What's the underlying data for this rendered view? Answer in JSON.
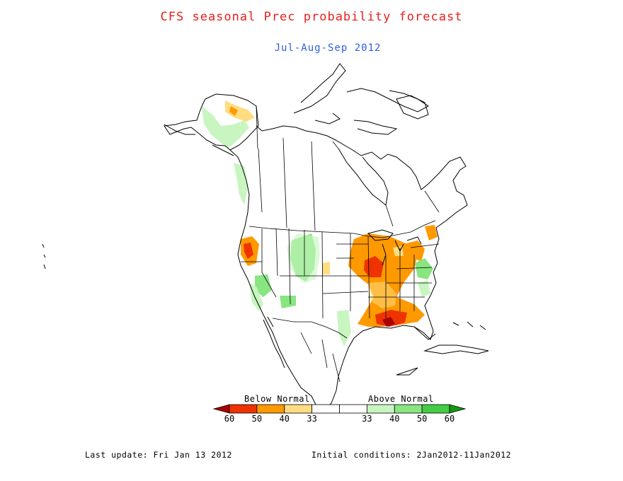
{
  "title": "CFS seasonal Prec probability forecast",
  "subtitle": "Jul-Aug-Sep 2012",
  "legend": {
    "below_label": "Below Normal",
    "above_label": "Above Normal",
    "bins": [
      {
        "label": "",
        "color": "#a80000"
      },
      {
        "label": "60",
        "color": "#ee3300"
      },
      {
        "label": "50",
        "color": "#ff9900"
      },
      {
        "label": "40",
        "color": "#ffdd80"
      },
      {
        "label": "33",
        "color": "#ffffff"
      },
      {
        "label": "33",
        "color": "#ffffff"
      },
      {
        "label": "40",
        "color": "#c8f5c0"
      },
      {
        "label": "50",
        "color": "#88e580"
      },
      {
        "label": "60",
        "color": "#44cc44"
      },
      {
        "label": "",
        "color": "#119911"
      }
    ]
  },
  "footer": {
    "last_update": "Last update: Fri Jan 13 2012",
    "initial_conditions": "Initial conditions: 2Jan2012-11Jan2012"
  }
}
